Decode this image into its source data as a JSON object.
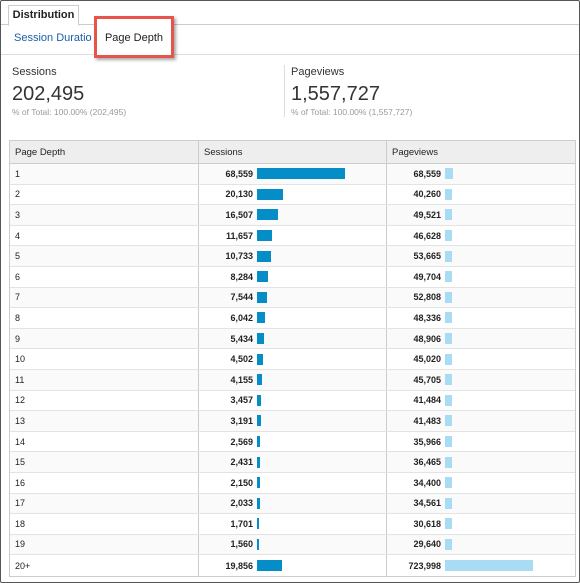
{
  "tabs": {
    "active_tab": "Distribution"
  },
  "subtabs": {
    "session_duration": "Session Duration",
    "page_depth": "Page Depth"
  },
  "metrics": {
    "sessions": {
      "label": "Sessions",
      "value": "202,495",
      "sub": "% of Total: 100.00% (202,495)"
    },
    "pageviews": {
      "label": "Pageviews",
      "value": "1,557,727",
      "sub": "% of Total: 100.00% (1,557,727)"
    }
  },
  "colors": {
    "sessions_bar": "#058dc7",
    "pageviews_bar": "#a8dcf5",
    "highlight_border": "#e8534a",
    "link": "#1a5fa8"
  },
  "table": {
    "headers": {
      "page_depth": "Page Depth",
      "sessions": "Sessions",
      "pageviews": "Pageviews"
    },
    "rows": [
      {
        "depth": "1",
        "sessions": "68,559",
        "pageviews": "68,559"
      },
      {
        "depth": "2",
        "sessions": "20,130",
        "pageviews": "40,260"
      },
      {
        "depth": "3",
        "sessions": "16,507",
        "pageviews": "49,521"
      },
      {
        "depth": "4",
        "sessions": "11,657",
        "pageviews": "46,628"
      },
      {
        "depth": "5",
        "sessions": "10,733",
        "pageviews": "53,665"
      },
      {
        "depth": "6",
        "sessions": "8,284",
        "pageviews": "49,704"
      },
      {
        "depth": "7",
        "sessions": "7,544",
        "pageviews": "52,808"
      },
      {
        "depth": "8",
        "sessions": "6,042",
        "pageviews": "48,336"
      },
      {
        "depth": "9",
        "sessions": "5,434",
        "pageviews": "48,906"
      },
      {
        "depth": "10",
        "sessions": "4,502",
        "pageviews": "45,020"
      },
      {
        "depth": "11",
        "sessions": "4,155",
        "pageviews": "45,705"
      },
      {
        "depth": "12",
        "sessions": "3,457",
        "pageviews": "41,484"
      },
      {
        "depth": "13",
        "sessions": "3,191",
        "pageviews": "41,483"
      },
      {
        "depth": "14",
        "sessions": "2,569",
        "pageviews": "35,966"
      },
      {
        "depth": "15",
        "sessions": "2,431",
        "pageviews": "36,465"
      },
      {
        "depth": "16",
        "sessions": "2,150",
        "pageviews": "34,400"
      },
      {
        "depth": "17",
        "sessions": "2,033",
        "pageviews": "34,561"
      },
      {
        "depth": "18",
        "sessions": "1,701",
        "pageviews": "30,618"
      },
      {
        "depth": "19",
        "sessions": "1,560",
        "pageviews": "29,640"
      },
      {
        "depth": "20+",
        "sessions": "19,856",
        "pageviews": "723,998"
      }
    ]
  }
}
